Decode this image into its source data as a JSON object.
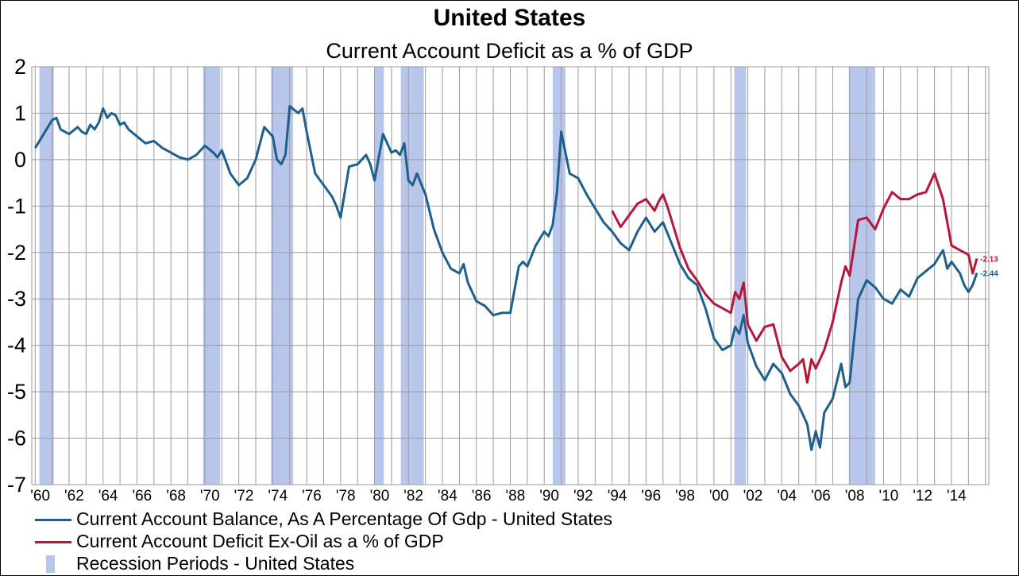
{
  "chart_data": {
    "type": "line",
    "title": "United States",
    "subtitle": "Current Account Deficit as a % of GDP",
    "xlabel": "",
    "ylabel": "",
    "xlim": [
      1959.8,
      2016.2
    ],
    "ylim": [
      -7,
      2
    ],
    "yticks": [
      2,
      1,
      0,
      -1,
      -2,
      -3,
      -4,
      -5,
      -6,
      -7
    ],
    "xtick_labels": [
      "'60",
      "'62",
      "'64",
      "'66",
      "'68",
      "'70",
      "'72",
      "'74",
      "'76",
      "'78",
      "'80",
      "'82",
      "'84",
      "'86",
      "'88",
      "'90",
      "'92",
      "'94",
      "'96",
      "'98",
      "'00",
      "'02",
      "'04",
      "'06",
      "'08",
      "'10",
      "'12",
      "'14"
    ],
    "grid": true,
    "legend_position": "bottom-left",
    "recessions": [
      [
        1960.25,
        1961.1
      ],
      [
        1969.9,
        1970.9
      ],
      [
        1973.9,
        1975.2
      ],
      [
        1980.0,
        1980.55
      ],
      [
        1981.55,
        1982.9
      ],
      [
        1990.5,
        1991.25
      ],
      [
        2001.2,
        2001.9
      ],
      [
        2007.95,
        2009.5
      ]
    ],
    "series": [
      {
        "name": "Current Account Balance, As A Percentage Of Gdp - United States",
        "color": "#1f5f8b",
        "end_label": "-2.44",
        "x": [
          1960.0,
          1960.5,
          1961.0,
          1961.25,
          1961.5,
          1962.0,
          1962.5,
          1962.75,
          1963.0,
          1963.25,
          1963.5,
          1963.75,
          1964.0,
          1964.25,
          1964.5,
          1964.75,
          1965.0,
          1965.25,
          1965.5,
          1966.0,
          1966.5,
          1967.0,
          1967.5,
          1968.0,
          1968.5,
          1969.0,
          1969.5,
          1970.0,
          1970.5,
          1970.75,
          1971.0,
          1971.5,
          1972.0,
          1972.5,
          1973.0,
          1973.5,
          1974.0,
          1974.25,
          1974.5,
          1974.75,
          1975.0,
          1975.5,
          1975.75,
          1976.0,
          1976.5,
          1977.0,
          1977.5,
          1977.75,
          1978.0,
          1978.5,
          1979.0,
          1979.5,
          1979.75,
          1980.0,
          1980.25,
          1980.5,
          1981.0,
          1981.25,
          1981.5,
          1981.75,
          1982.0,
          1982.25,
          1982.5,
          1983.0,
          1983.5,
          1984.0,
          1984.5,
          1985.0,
          1985.25,
          1985.5,
          1986.0,
          1986.5,
          1987.0,
          1987.5,
          1988.0,
          1988.5,
          1988.75,
          1989.0,
          1989.5,
          1990.0,
          1990.25,
          1990.5,
          1990.75,
          1991.0,
          1991.5,
          1992.0,
          1992.5,
          1993.0,
          1993.5,
          1994.0,
          1994.5,
          1995.0,
          1995.5,
          1996.0,
          1996.5,
          1997.0,
          1997.5,
          1998.0,
          1998.5,
          1999.0,
          1999.5,
          2000.0,
          2000.5,
          2001.0,
          2001.25,
          2001.5,
          2001.75,
          2002.0,
          2002.5,
          2003.0,
          2003.5,
          2004.0,
          2004.5,
          2005.0,
          2005.25,
          2005.5,
          2005.75,
          2006.0,
          2006.25,
          2006.5,
          2007.0,
          2007.5,
          2007.75,
          2008.0,
          2008.5,
          2009.0,
          2009.5,
          2010.0,
          2010.5,
          2011.0,
          2011.5,
          2012.0,
          2012.5,
          2013.0,
          2013.5,
          2013.75,
          2014.0,
          2014.5,
          2014.75,
          2015.0,
          2015.25,
          2015.5
        ],
        "values": [
          0.25,
          0.55,
          0.85,
          0.9,
          0.65,
          0.55,
          0.7,
          0.6,
          0.55,
          0.75,
          0.65,
          0.8,
          1.1,
          0.9,
          1.0,
          0.95,
          0.75,
          0.8,
          0.65,
          0.5,
          0.35,
          0.4,
          0.25,
          0.15,
          0.05,
          0.0,
          0.1,
          0.3,
          0.15,
          0.05,
          0.2,
          -0.3,
          -0.55,
          -0.4,
          0.0,
          0.7,
          0.5,
          0.0,
          -0.1,
          0.1,
          1.15,
          1.0,
          1.1,
          0.6,
          -0.3,
          -0.55,
          -0.8,
          -1.0,
          -1.25,
          -0.15,
          -0.1,
          0.1,
          -0.1,
          -0.45,
          0.05,
          0.55,
          0.15,
          0.2,
          0.1,
          0.35,
          -0.45,
          -0.55,
          -0.3,
          -0.75,
          -1.5,
          -2.0,
          -2.35,
          -2.45,
          -2.25,
          -2.65,
          -3.05,
          -3.15,
          -3.35,
          -3.3,
          -3.3,
          -2.3,
          -2.2,
          -2.3,
          -1.85,
          -1.55,
          -1.65,
          -1.4,
          -0.7,
          0.6,
          -0.3,
          -0.4,
          -0.75,
          -1.05,
          -1.35,
          -1.55,
          -1.8,
          -1.95,
          -1.55,
          -1.25,
          -1.55,
          -1.35,
          -1.8,
          -2.25,
          -2.55,
          -2.7,
          -3.2,
          -3.85,
          -4.1,
          -4.0,
          -3.6,
          -3.75,
          -3.35,
          -3.95,
          -4.45,
          -4.75,
          -4.4,
          -4.6,
          -5.05,
          -5.3,
          -5.5,
          -5.7,
          -6.25,
          -5.85,
          -6.2,
          -5.45,
          -5.15,
          -4.4,
          -4.9,
          -4.8,
          -3.0,
          -2.6,
          -2.75,
          -3.0,
          -3.1,
          -2.8,
          -2.95,
          -2.55,
          -2.4,
          -2.25,
          -1.95,
          -2.35,
          -2.2,
          -2.45,
          -2.7,
          -2.85,
          -2.7,
          -2.44
        ]
      },
      {
        "name": "Current Account Deficit Ex-Oil as a % of GDP",
        "color": "#b5173a",
        "end_label": "-2.13",
        "x": [
          1994.0,
          1994.5,
          1995.0,
          1995.5,
          1996.0,
          1996.5,
          1996.75,
          1997.0,
          1997.25,
          1997.5,
          1998.0,
          1998.5,
          1999.0,
          1999.5,
          2000.0,
          2000.5,
          2001.0,
          2001.25,
          2001.5,
          2001.75,
          2002.0,
          2002.5,
          2003.0,
          2003.5,
          2004.0,
          2004.5,
          2005.0,
          2005.25,
          2005.5,
          2005.75,
          2006.0,
          2006.5,
          2007.0,
          2007.5,
          2007.75,
          2008.0,
          2008.5,
          2009.0,
          2009.5,
          2010.0,
          2010.5,
          2011.0,
          2011.5,
          2012.0,
          2012.5,
          2013.0,
          2013.5,
          2013.75,
          2014.0,
          2014.5,
          2015.0,
          2015.25,
          2015.5
        ],
        "values": [
          -1.1,
          -1.45,
          -1.2,
          -0.95,
          -0.85,
          -1.1,
          -0.9,
          -0.75,
          -1.0,
          -1.3,
          -1.9,
          -2.35,
          -2.6,
          -2.9,
          -3.1,
          -3.2,
          -3.3,
          -2.85,
          -3.0,
          -2.65,
          -3.55,
          -3.9,
          -3.6,
          -3.55,
          -4.25,
          -4.55,
          -4.4,
          -4.3,
          -4.8,
          -4.3,
          -4.5,
          -4.1,
          -3.5,
          -2.65,
          -2.3,
          -2.5,
          -1.3,
          -1.25,
          -1.5,
          -1.05,
          -0.7,
          -0.85,
          -0.85,
          -0.75,
          -0.7,
          -0.3,
          -0.85,
          -1.35,
          -1.85,
          -1.95,
          -2.05,
          -2.45,
          -2.13
        ]
      }
    ],
    "legend": [
      {
        "label": "Current Account Balance, As A Percentage Of Gdp - United States",
        "swatch": "line",
        "color": "#1f5f8b"
      },
      {
        "label": "Current Account Deficit Ex-Oil as a % of GDP",
        "swatch": "line",
        "color": "#b5173a"
      },
      {
        "label": "Recession Periods - United States",
        "swatch": "box",
        "color": "#b7c6ea"
      }
    ]
  }
}
